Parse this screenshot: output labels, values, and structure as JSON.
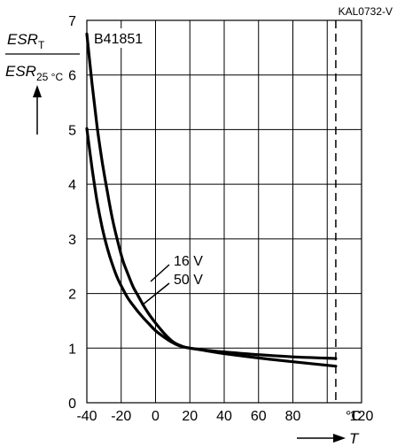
{
  "chart_data": {
    "type": "line",
    "code": "KAL0732-V",
    "part_number": "B41851",
    "xlabel": "T",
    "x_unit": "°C",
    "ylabel": {
      "numerator": "ESR",
      "numerator_sub": "T",
      "denominator": "ESR",
      "denominator_sub": "25 °C"
    },
    "xlim": [
      -40,
      120
    ],
    "ylim": [
      0,
      7
    ],
    "x_ticks": [
      "-40",
      "-20",
      "0",
      "20",
      "40",
      "60",
      "80",
      "120"
    ],
    "y_ticks": [
      "0",
      "1",
      "2",
      "3",
      "4",
      "5",
      "6",
      "7"
    ],
    "grid": true,
    "reference_line_x": 105,
    "series": [
      {
        "name": "16 V",
        "x": [
          -40,
          -37,
          -34,
          -31,
          -28,
          -25,
          -22,
          -19,
          -16,
          -13,
          -10,
          -7,
          -4,
          0,
          5,
          10,
          15,
          20,
          30,
          40,
          60,
          80,
          105
        ],
        "y": [
          6.75,
          5.85,
          5.05,
          4.4,
          3.85,
          3.35,
          2.95,
          2.6,
          2.35,
          2.12,
          1.95,
          1.78,
          1.63,
          1.46,
          1.27,
          1.12,
          1.04,
          1.0,
          0.96,
          0.93,
          0.88,
          0.84,
          0.81
        ]
      },
      {
        "name": "50 V",
        "x": [
          -40,
          -37,
          -34,
          -31,
          -28,
          -25,
          -22,
          -19,
          -16,
          -13,
          -10,
          -7,
          -4,
          0,
          5,
          10,
          15,
          20,
          30,
          40,
          60,
          80,
          105
        ],
        "y": [
          5.02,
          4.3,
          3.68,
          3.2,
          2.82,
          2.52,
          2.27,
          2.08,
          1.91,
          1.78,
          1.66,
          1.55,
          1.45,
          1.32,
          1.2,
          1.1,
          1.03,
          1.0,
          0.95,
          0.9,
          0.82,
          0.75,
          0.67
        ]
      }
    ]
  }
}
